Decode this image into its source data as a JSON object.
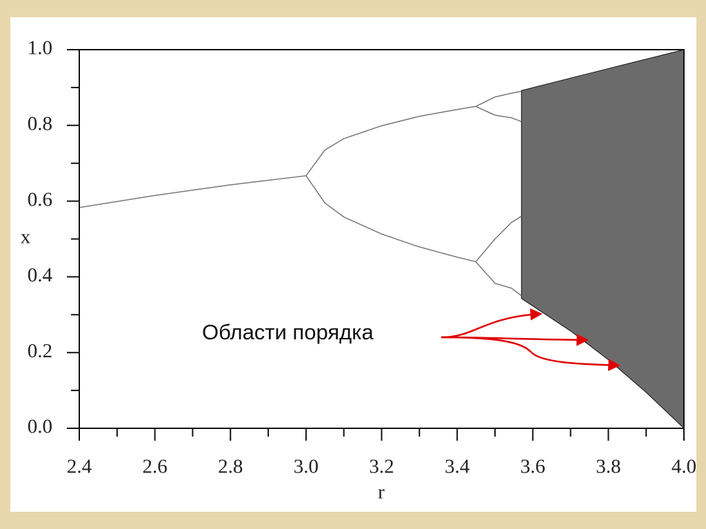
{
  "chart_data": {
    "type": "bifurcation",
    "xlabel": "r",
    "ylabel": "x",
    "xlim": [
      2.4,
      4.0
    ],
    "ylim": [
      0.0,
      1.0
    ],
    "xticks": [
      {
        "value": 2.4,
        "label": "2.4"
      },
      {
        "value": 2.6,
        "label": "2.6"
      },
      {
        "value": 2.8,
        "label": "2.8"
      },
      {
        "value": 3.0,
        "label": "3.0"
      },
      {
        "value": 3.2,
        "label": "3.2"
      },
      {
        "value": 3.4,
        "label": "3.4"
      },
      {
        "value": 3.6,
        "label": "3.6"
      },
      {
        "value": 3.8,
        "label": "3.8"
      },
      {
        "value": 4.0,
        "label": "4.0"
      }
    ],
    "xminorticks": [
      2.5,
      2.7,
      2.9,
      3.1,
      3.3,
      3.5,
      3.7,
      3.9
    ],
    "yticks": [
      {
        "value": 0.0,
        "label": "0.0"
      },
      {
        "value": 0.2,
        "label": "0.2"
      },
      {
        "value": 0.4,
        "label": "0.4"
      },
      {
        "value": 0.6,
        "label": "0.6"
      },
      {
        "value": 0.8,
        "label": "0.8"
      },
      {
        "value": 1.0,
        "label": "1.0"
      }
    ],
    "yminorticks": [
      0.1,
      0.3,
      0.5,
      0.7,
      0.9
    ],
    "color": "#777777",
    "series": [
      {
        "x": [
          2.4,
          2.6,
          2.8,
          3.0
        ],
        "values": [
          0.583,
          0.615,
          0.643,
          0.667
        ]
      },
      {
        "x": [
          3.0,
          3.05,
          3.1,
          3.2,
          3.3,
          3.4,
          3.449
        ],
        "values": [
          0.667,
          0.735,
          0.765,
          0.799,
          0.824,
          0.842,
          0.85
        ]
      },
      {
        "x": [
          3.0,
          3.05,
          3.1,
          3.2,
          3.3,
          3.4,
          3.449
        ],
        "values": [
          0.667,
          0.595,
          0.558,
          0.513,
          0.479,
          0.452,
          0.44
        ]
      },
      {
        "x": [
          3.449,
          3.5,
          3.544,
          3.57
        ],
        "values": [
          0.85,
          0.875,
          0.885,
          0.89
        ]
      },
      {
        "x": [
          3.449,
          3.5,
          3.544,
          3.57
        ],
        "values": [
          0.85,
          0.827,
          0.82,
          0.81
        ]
      },
      {
        "x": [
          3.449,
          3.5,
          3.544,
          3.57
        ],
        "values": [
          0.44,
          0.5,
          0.544,
          0.56
        ]
      },
      {
        "x": [
          3.449,
          3.5,
          3.544,
          3.57
        ],
        "values": [
          0.44,
          0.383,
          0.37,
          0.35
        ]
      }
    ],
    "band": {
      "x": [
        3.57,
        3.7,
        3.8,
        3.9,
        4.0
      ],
      "upper": [
        0.892,
        0.925,
        0.95,
        0.975,
        1.0
      ],
      "lower": [
        0.343,
        0.257,
        0.181,
        0.095,
        0.0
      ],
      "color": "#3a3a3a"
    },
    "annotation": "Области порядка"
  }
}
